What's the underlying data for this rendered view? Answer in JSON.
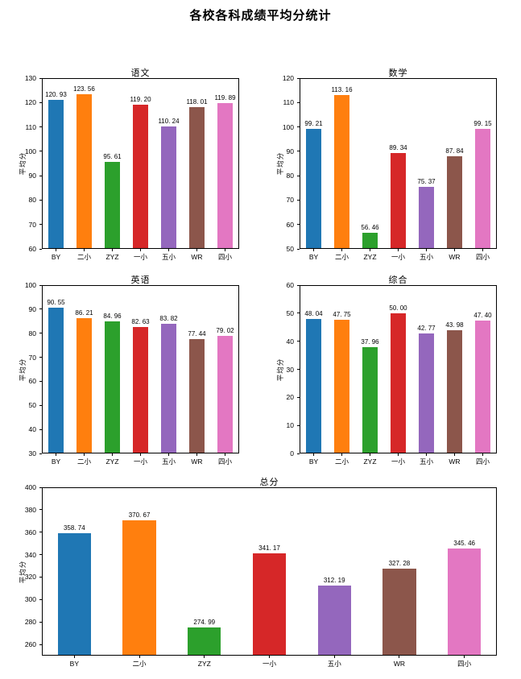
{
  "suptitle": "各校各科成绩平均分统计",
  "categories": [
    "BY",
    "二小",
    "ZYZ",
    "一小",
    "五小",
    "WR",
    "四小"
  ],
  "bar_colors": [
    "#1f77b4",
    "#ff7f0e",
    "#2ca02c",
    "#d62728",
    "#9467bd",
    "#8c564b",
    "#e377c2"
  ],
  "chart_data": [
    {
      "type": "bar",
      "title": "语文",
      "ylabel": "平均分",
      "categories": [
        "BY",
        "二小",
        "ZYZ",
        "一小",
        "五小",
        "WR",
        "四小"
      ],
      "values": [
        120.93,
        123.56,
        95.61,
        119.2,
        110.24,
        118.01,
        119.89
      ],
      "labels": [
        "120. 93",
        "123. 56",
        "95. 61",
        "119. 20",
        "110. 24",
        "118. 01",
        "119. 89"
      ],
      "ylim": [
        60,
        130
      ],
      "yticks": [
        60,
        70,
        80,
        90,
        100,
        110,
        120,
        130
      ],
      "grid": false,
      "legend": false
    },
    {
      "type": "bar",
      "title": "数学",
      "ylabel": "平均分",
      "categories": [
        "BY",
        "二小",
        "ZYZ",
        "一小",
        "五小",
        "WR",
        "四小"
      ],
      "values": [
        99.21,
        113.16,
        56.46,
        89.34,
        75.37,
        87.84,
        99.15
      ],
      "labels": [
        "99. 21",
        "113. 16",
        "56. 46",
        "89. 34",
        "75. 37",
        "87. 84",
        "99. 15"
      ],
      "ylim": [
        50,
        120
      ],
      "yticks": [
        50,
        60,
        70,
        80,
        90,
        100,
        110,
        120
      ],
      "grid": false,
      "legend": false
    },
    {
      "type": "bar",
      "title": "英语",
      "ylabel": "平均分",
      "categories": [
        "BY",
        "二小",
        "ZYZ",
        "一小",
        "五小",
        "WR",
        "四小"
      ],
      "values": [
        90.55,
        86.21,
        84.96,
        82.63,
        83.82,
        77.44,
        79.02
      ],
      "labels": [
        "90. 55",
        "86. 21",
        "84. 96",
        "82. 63",
        "83. 82",
        "77. 44",
        "79. 02"
      ],
      "ylim": [
        30,
        100
      ],
      "yticks": [
        30,
        40,
        50,
        60,
        70,
        80,
        90,
        100
      ],
      "grid": false,
      "legend": false
    },
    {
      "type": "bar",
      "title": "综合",
      "ylabel": "平均分",
      "categories": [
        "BY",
        "二小",
        "ZYZ",
        "一小",
        "五小",
        "WR",
        "四小"
      ],
      "values": [
        48.04,
        47.75,
        37.96,
        50.0,
        42.77,
        43.98,
        47.4
      ],
      "labels": [
        "48. 04",
        "47. 75",
        "37. 96",
        "50. 00",
        "42. 77",
        "43. 98",
        "47. 40"
      ],
      "ylim": [
        0,
        60
      ],
      "yticks": [
        0,
        10,
        20,
        30,
        40,
        50,
        60
      ],
      "grid": false,
      "legend": false
    },
    {
      "type": "bar",
      "title": "总分",
      "ylabel": "平均分",
      "categories": [
        "BY",
        "二小",
        "ZYZ",
        "一小",
        "五小",
        "WR",
        "四小"
      ],
      "values": [
        358.74,
        370.67,
        274.99,
        341.17,
        312.19,
        327.28,
        345.46
      ],
      "labels": [
        "358. 74",
        "370. 67",
        "274. 99",
        "341. 17",
        "312. 19",
        "327. 28",
        "345. 46"
      ],
      "ylim": [
        250,
        400
      ],
      "yticks": [
        260,
        280,
        300,
        320,
        340,
        360,
        380,
        400
      ],
      "grid": false,
      "legend": false
    }
  ]
}
